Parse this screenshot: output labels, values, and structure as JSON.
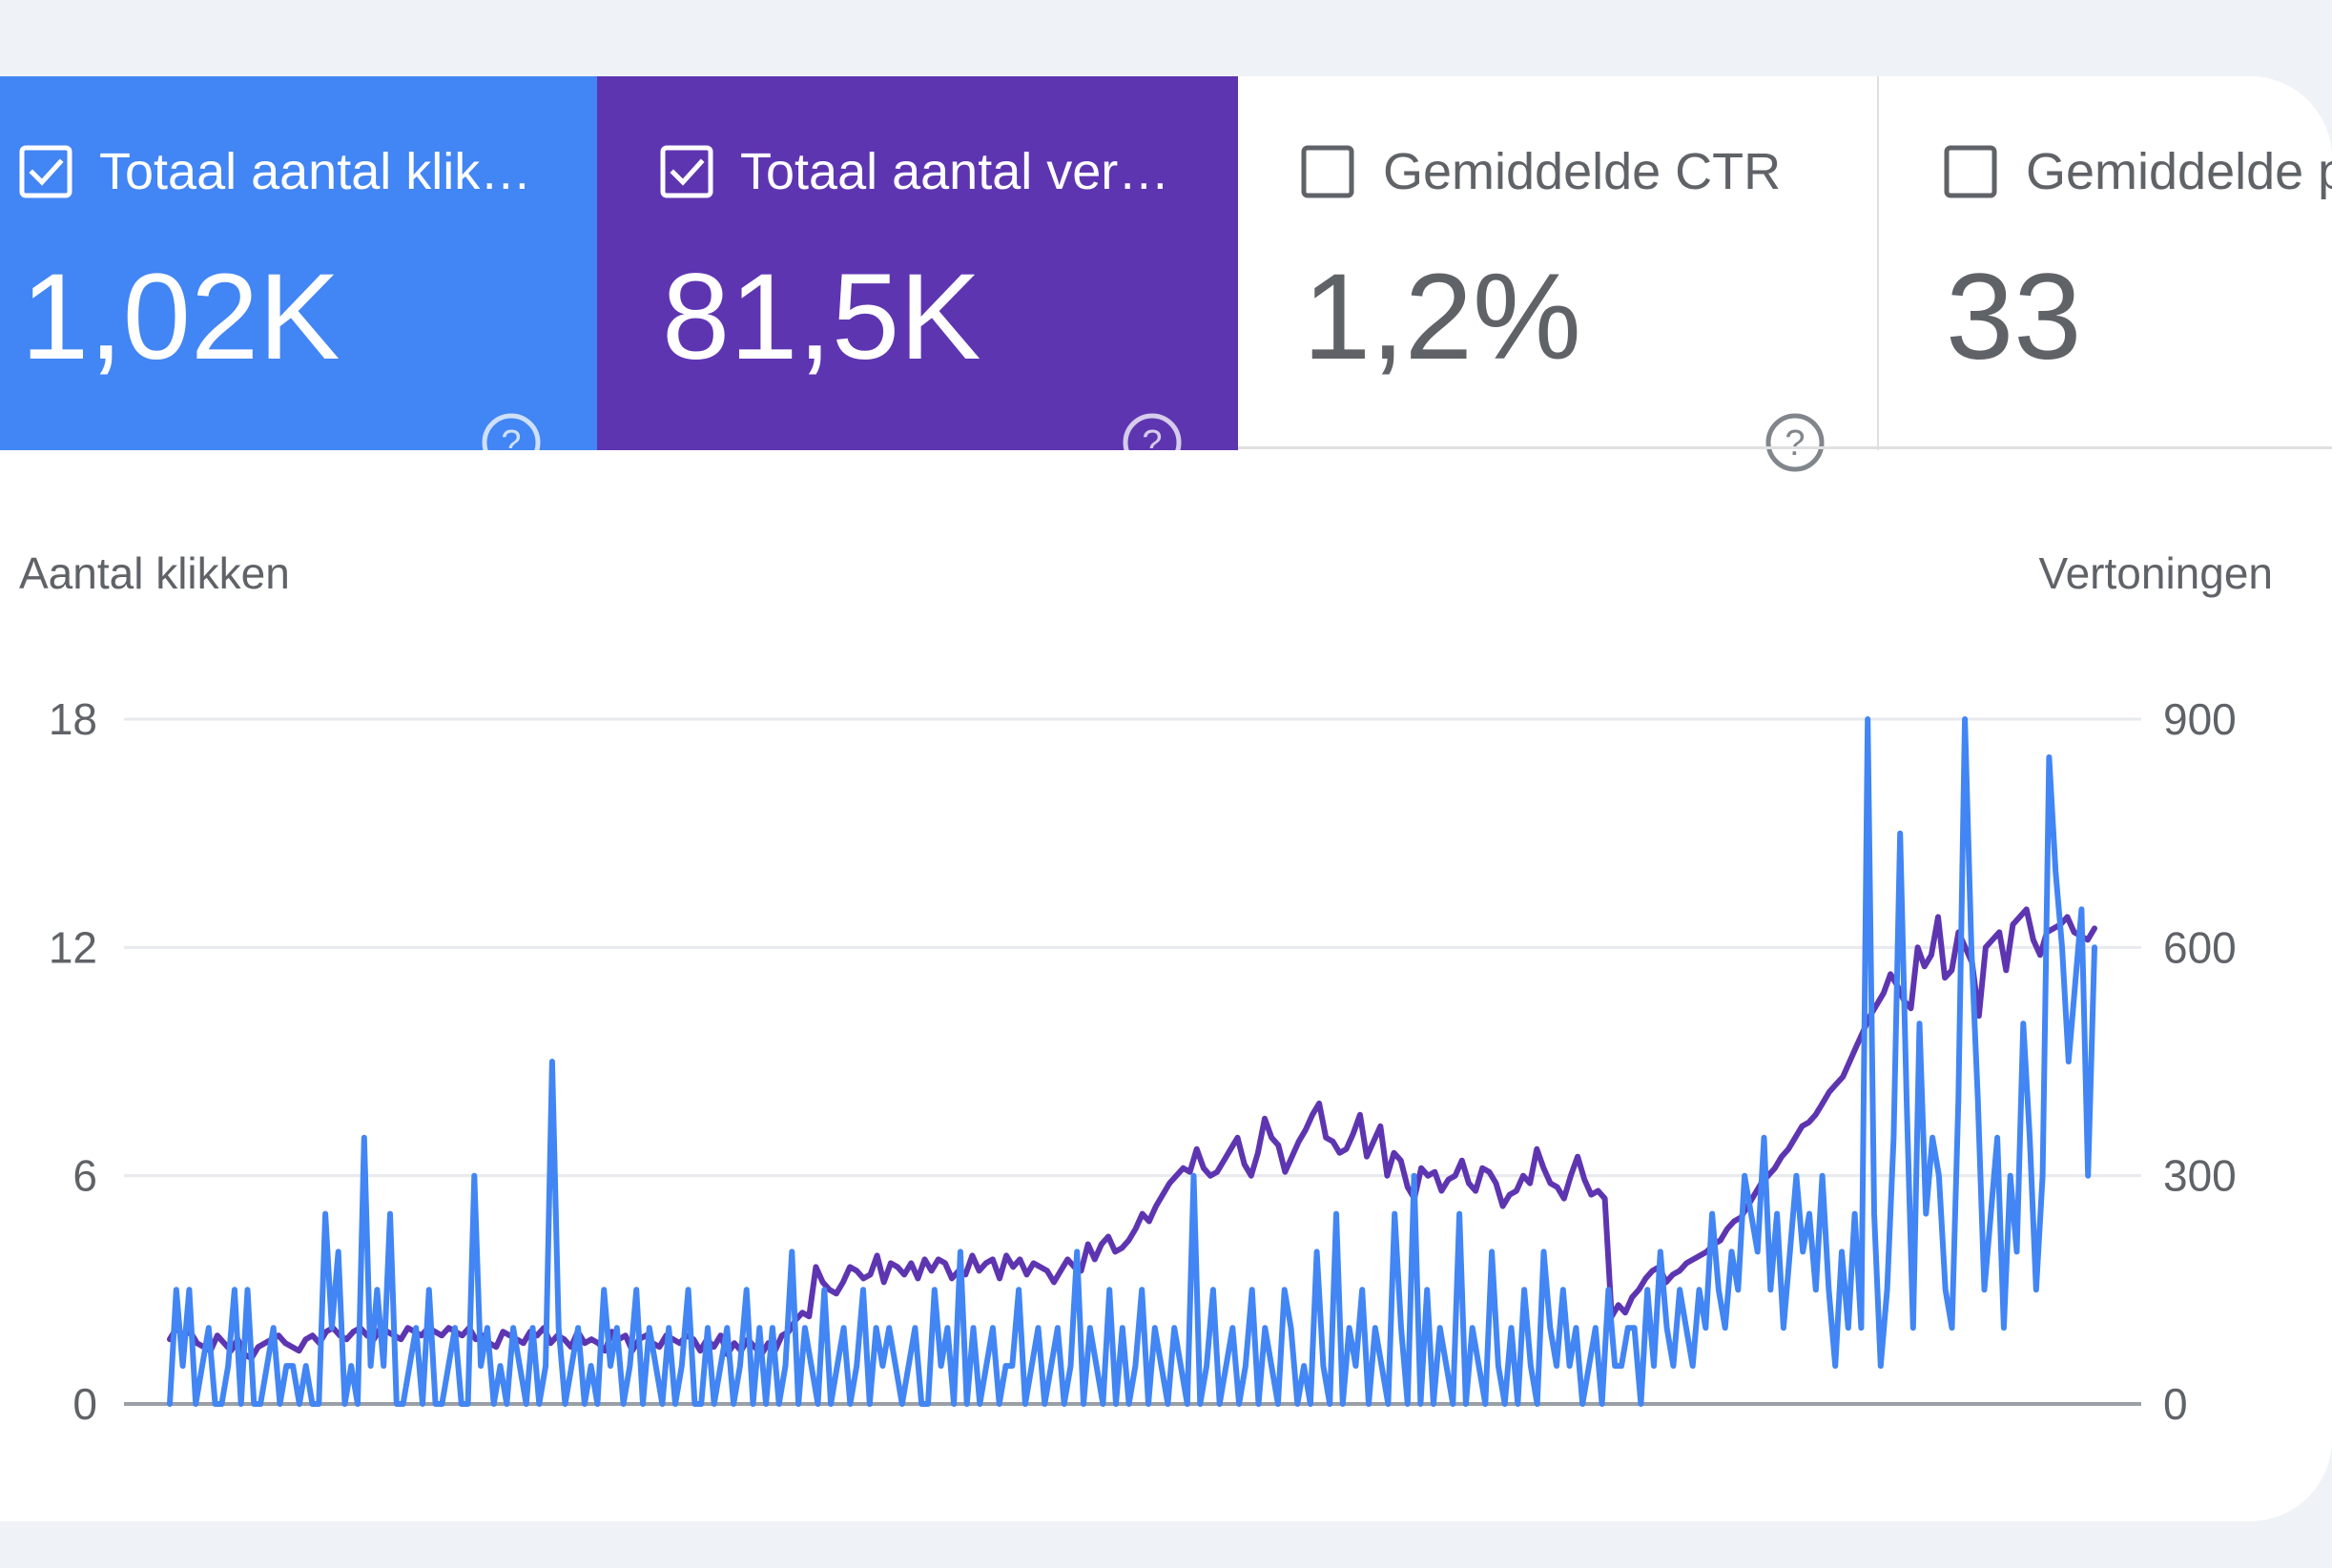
{
  "tiles": [
    {
      "label": "Totaal aantal klik…",
      "value": "1,02K",
      "checked": true,
      "color": "#4285f4"
    },
    {
      "label": "Totaal aantal ver…",
      "value": "81,5K",
      "checked": true,
      "color": "#5e35b1"
    },
    {
      "label": "Gemiddelde CTR",
      "value": "1,2%",
      "checked": false
    },
    {
      "label": "Gemiddelde p",
      "value": "33",
      "checked": false
    }
  ],
  "icons": {
    "checkbox_checked": "checkbox-checked-icon",
    "checkbox_unchecked": "checkbox-unchecked-icon",
    "help": "help-icon"
  },
  "chart": {
    "left_axis_title": "Aantal klikken",
    "right_axis_title": "Vertoningen"
  },
  "chart_data": {
    "type": "line",
    "ylabel": "Aantal klikken",
    "y2label": "Vertoningen",
    "ylim": [
      0,
      18
    ],
    "y2lim": [
      0,
      900
    ],
    "yticks": [
      0,
      6,
      12,
      18
    ],
    "y2ticks": [
      0,
      300,
      600,
      900
    ],
    "grid": true,
    "series": [
      {
        "name": "Totaal aantal klikken",
        "axis": "left",
        "color": "#4285f4",
        "values": [
          0,
          3,
          1,
          3,
          0,
          1,
          2,
          0,
          0,
          1,
          3,
          0,
          3,
          0,
          0,
          1,
          2,
          0,
          1,
          1,
          0,
          1,
          0,
          0,
          5,
          2,
          4,
          0,
          1,
          0,
          7,
          1,
          3,
          1,
          5,
          0,
          0,
          1,
          2,
          0,
          3,
          0,
          0,
          1,
          2,
          0,
          0,
          6,
          1,
          2,
          0,
          1,
          0,
          2,
          1,
          0,
          2,
          0,
          1,
          9,
          2,
          0,
          1,
          2,
          0,
          1,
          0,
          3,
          1,
          2,
          0,
          1,
          3,
          0,
          2,
          1,
          0,
          2,
          0,
          1,
          3,
          0,
          0,
          2,
          0,
          1,
          2,
          0,
          1,
          3,
          0,
          2,
          0,
          2,
          0,
          1,
          4,
          0,
          2,
          1,
          0,
          3,
          0,
          1,
          2,
          0,
          1,
          3,
          0,
          2,
          1,
          2,
          1,
          0,
          1,
          2,
          0,
          0,
          3,
          1,
          2,
          0,
          4,
          0,
          2,
          0,
          1,
          2,
          0,
          1,
          1,
          3,
          0,
          1,
          2,
          0,
          1,
          2,
          0,
          1,
          4,
          0,
          2,
          1,
          0,
          3,
          0,
          2,
          0,
          1,
          3,
          0,
          2,
          1,
          0,
          2,
          1,
          0,
          6,
          0,
          1,
          3,
          0,
          1,
          2,
          0,
          1,
          3,
          0,
          2,
          1,
          0,
          3,
          2,
          0,
          1,
          0,
          4,
          1,
          0,
          5,
          0,
          2,
          1,
          3,
          0,
          2,
          1,
          0,
          5,
          2,
          0,
          6,
          0,
          3,
          0,
          2,
          1,
          0,
          5,
          0,
          2,
          1,
          0,
          4,
          1,
          0,
          2,
          0,
          3,
          1,
          0,
          4,
          2,
          1,
          3,
          1,
          2,
          0,
          1,
          2,
          0,
          3,
          1,
          1,
          2,
          2,
          0,
          3,
          1,
          4,
          2,
          1,
          3,
          2,
          1,
          3,
          2,
          5,
          3,
          2,
          4,
          3,
          6,
          5,
          4,
          7,
          3,
          5,
          2,
          4,
          6,
          4,
          5,
          3,
          6,
          3,
          1,
          4,
          2,
          5,
          2,
          18,
          5,
          1,
          3,
          7,
          15,
          8,
          2,
          10,
          5,
          7,
          6,
          3,
          2,
          8,
          18,
          12,
          8,
          3,
          5,
          7,
          2,
          6,
          4,
          10,
          7,
          3,
          6,
          17,
          14,
          12,
          9,
          11,
          13,
          6,
          12
        ]
      },
      {
        "name": "Totaal aantal vertoningen",
        "axis": "right",
        "color": "#5e35b1",
        "values": [
          85,
          100,
          90,
          95,
          80,
          75,
          70,
          90,
          80,
          70,
          85,
          65,
          60,
          75,
          80,
          85,
          90,
          80,
          75,
          70,
          85,
          90,
          80,
          95,
          100,
          90,
          85,
          95,
          100,
          90,
          85,
          100,
          95,
          90,
          85,
          100,
          95,
          90,
          100,
          95,
          90,
          100,
          95,
          90,
          100,
          85,
          90,
          80,
          75,
          95,
          90,
          85,
          80,
          95,
          90,
          100,
          80,
          90,
          85,
          75,
          95,
          80,
          85,
          80,
          70,
          95,
          85,
          90,
          70,
          85,
          90,
          80,
          75,
          90,
          85,
          80,
          90,
          85,
          70,
          85,
          75,
          90,
          65,
          80,
          70,
          85,
          75,
          65,
          80,
          70,
          90,
          95,
          110,
          120,
          115,
          180,
          160,
          150,
          145,
          160,
          180,
          175,
          165,
          170,
          195,
          160,
          185,
          180,
          170,
          185,
          165,
          190,
          175,
          190,
          185,
          165,
          175,
          170,
          195,
          175,
          185,
          190,
          165,
          195,
          180,
          190,
          170,
          185,
          180,
          175,
          160,
          175,
          190,
          180,
          175,
          210,
          190,
          210,
          220,
          200,
          205,
          215,
          230,
          250,
          240,
          260,
          275,
          290,
          300,
          310,
          305,
          335,
          310,
          300,
          305,
          320,
          335,
          350,
          315,
          300,
          330,
          375,
          350,
          340,
          305,
          325,
          345,
          360,
          380,
          395,
          350,
          345,
          330,
          335,
          355,
          380,
          325,
          345,
          365,
          300,
          330,
          320,
          285,
          270,
          310,
          300,
          305,
          280,
          295,
          300,
          320,
          290,
          280,
          310,
          305,
          290,
          260,
          275,
          280,
          300,
          290,
          335,
          310,
          290,
          285,
          270,
          300,
          325,
          295,
          275,
          280,
          270,
          115,
          130,
          120,
          140,
          150,
          165,
          175,
          180,
          160,
          170,
          175,
          185,
          190,
          195,
          200,
          210,
          215,
          230,
          240,
          245,
          260,
          275,
          290,
          300,
          310,
          325,
          335,
          350,
          365,
          370,
          380,
          395,
          410,
          420,
          430,
          450,
          470,
          490,
          510,
          525,
          540,
          565,
          550,
          530,
          520,
          600,
          575,
          590,
          640,
          560,
          570,
          620,
          600,
          580,
          510,
          600,
          610,
          620,
          570,
          630,
          640,
          650,
          610,
          590,
          620,
          625,
          630,
          640,
          620,
          615,
          610,
          625
        ]
      }
    ]
  }
}
